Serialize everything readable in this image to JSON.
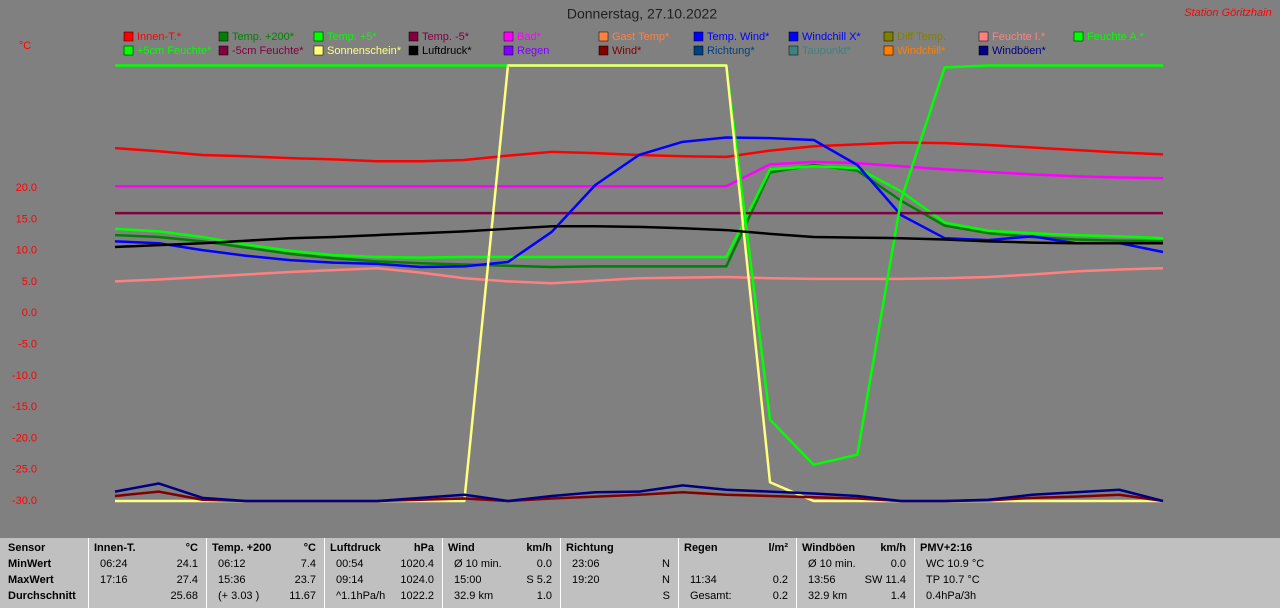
{
  "chart_data": {
    "type": "line",
    "title": "Donnerstag, 27.10.2022",
    "subtitle": "Station Göritzhain",
    "y_label": "°C",
    "x": [
      0,
      1,
      2,
      3,
      4,
      5,
      6,
      7,
      8,
      9,
      10,
      11,
      12,
      13,
      14,
      15,
      16,
      17,
      18,
      19,
      20,
      21,
      22,
      23,
      24
    ],
    "xlim": [
      0,
      24
    ],
    "ylim": [
      -30,
      40
    ],
    "yticks": [
      {
        "value": 20,
        "label": "20.0"
      },
      {
        "value": 15,
        "label": "15.0"
      },
      {
        "value": 10,
        "label": "10.0"
      },
      {
        "value": 5,
        "label": "5.0"
      },
      {
        "value": 0,
        "label": "0.0"
      },
      {
        "value": -5,
        "label": "-5.0"
      },
      {
        "value": -10,
        "label": "-10.0"
      },
      {
        "value": -15,
        "label": "-15.0"
      },
      {
        "value": -20,
        "label": "-20.0"
      },
      {
        "value": -25,
        "label": "-25.0"
      },
      {
        "value": -30,
        "label": "-30.0"
      }
    ],
    "grid": false,
    "series": [
      {
        "name": "Innen-T.*",
        "color": "#ff0000",
        "values": [
          26.4,
          25.9,
          25.3,
          25.1,
          24.8,
          24.6,
          24.3,
          24.3,
          24.5,
          25.2,
          25.8,
          25.6,
          25.3,
          25.1,
          25.0,
          26.0,
          26.7,
          27.0,
          27.3,
          27.2,
          26.9,
          26.5,
          26.1,
          25.7,
          25.4
        ]
      },
      {
        "name": "Temp. +200*",
        "color": "#008000",
        "values": [
          12.5,
          12.2,
          11.5,
          10.5,
          9.5,
          8.8,
          8.3,
          8.0,
          7.8,
          7.6,
          7.4,
          7.5,
          7.5,
          7.5,
          7.5,
          22.5,
          23.7,
          22.8,
          18.0,
          14.0,
          12.8,
          12.2,
          11.8,
          11.6,
          11.5
        ]
      },
      {
        "name": "Temp. +5*",
        "color": "#00ff00",
        "values": [
          13.5,
          13.1,
          12.2,
          11.0,
          10.0,
          9.3,
          9.0,
          8.9,
          9.0,
          9.0,
          9.0,
          9.0,
          9.0,
          9.0,
          9.0,
          23.0,
          23.5,
          23.2,
          19.5,
          14.5,
          13.2,
          12.8,
          12.5,
          12.3,
          12.0
        ]
      },
      {
        "name": "Temp. -5*",
        "color": "#800040",
        "values": [
          16.0,
          16.0,
          16.0,
          16.0,
          16.0,
          16.0,
          16.0,
          16.0,
          16.0,
          16.0,
          16.0,
          16.0,
          16.0,
          16.0,
          16.0,
          16.0,
          16.0,
          16.0,
          16.0,
          16.0,
          16.0,
          16.0,
          16.0,
          16.0,
          16.0
        ]
      },
      {
        "name": "Bad*",
        "color": "#ff00ff",
        "values": [
          20.3,
          20.3,
          20.3,
          20.3,
          20.3,
          20.3,
          20.3,
          20.3,
          20.3,
          20.3,
          20.3,
          20.3,
          20.3,
          20.3,
          20.3,
          23.8,
          24.2,
          24.0,
          23.5,
          23.0,
          22.6,
          22.2,
          21.9,
          21.7,
          21.6
        ]
      },
      {
        "name": "Gast Temp*",
        "color": "#ff8040"
      },
      {
        "name": "Temp. Wind*",
        "color": "#0000ff"
      },
      {
        "name": "Windchill X*",
        "color": "#0000ff",
        "values": [
          11.5,
          11.2,
          10.1,
          9.2,
          8.5,
          8.1,
          7.9,
          7.4,
          7.5,
          8.2,
          13.0,
          20.5,
          25.3,
          27.4,
          28.1,
          28.0,
          27.7,
          23.7,
          15.7,
          12.0,
          11.7,
          12.3,
          11.2,
          11.2,
          9.8
        ]
      },
      {
        "name": "Diff Temp.",
        "color": "#808000"
      },
      {
        "name": "Feuchte I.*",
        "color": "#ff8080",
        "values": [
          5.1,
          5.4,
          5.8,
          6.2,
          6.6,
          6.9,
          7.2,
          6.5,
          5.6,
          5.1,
          4.8,
          5.2,
          5.6,
          5.7,
          5.8,
          5.6,
          5.5,
          5.5,
          5.5,
          5.6,
          5.8,
          6.2,
          6.7,
          7.0,
          7.2
        ]
      },
      {
        "name": "Feuchte A.*",
        "color": "#00ff00",
        "values": [
          39.6,
          39.6,
          39.6,
          39.6,
          39.6,
          39.6,
          39.6,
          39.6,
          39.6,
          39.6,
          39.6,
          39.6,
          39.6,
          39.6,
          39.6,
          -17.0,
          -24.2,
          -22.6,
          18.1,
          39.3,
          39.6,
          39.6,
          39.6,
          39.6,
          39.6
        ]
      },
      {
        "name": "+5cm Feuchte*",
        "color": "#00ff00"
      },
      {
        "name": "-5cm Feuchte*",
        "color": "#800040"
      },
      {
        "name": "Sonnenschein*",
        "color": "#ffff80",
        "values": [
          -30,
          -30,
          -30,
          -30,
          -30,
          -30,
          -30,
          -30,
          -30,
          39.6,
          39.6,
          39.6,
          39.6,
          39.6,
          39.6,
          -27.0,
          -30,
          -30,
          -30,
          -30,
          -30,
          -30,
          -30,
          -30,
          -30
        ]
      },
      {
        "name": "Luftdruck*",
        "color": "#000000",
        "values": [
          10.6,
          10.9,
          11.2,
          11.6,
          12.0,
          12.2,
          12.5,
          12.8,
          13.1,
          13.5,
          13.9,
          13.9,
          13.8,
          13.6,
          13.3,
          12.7,
          12.2,
          12.1,
          12.0,
          11.8,
          11.5,
          11.3,
          11.2,
          11.2,
          11.2
        ]
      },
      {
        "name": "Regen",
        "color": "#8000ff"
      },
      {
        "name": "Wind*",
        "color": "#800000",
        "values": [
          -29.2,
          -28.5,
          -29.8,
          -30,
          -30,
          -30,
          -30,
          -29.8,
          -29.6,
          -30,
          -29.6,
          -29.3,
          -29.0,
          -28.6,
          -29.0,
          -29.2,
          -29.4,
          -29.6,
          -30,
          -30,
          -29.9,
          -29.5,
          -29.3,
          -29.0,
          -30
        ]
      },
      {
        "name": "Richtung*",
        "color": "#004080"
      },
      {
        "name": "Taupunkt*",
        "color": "#408080"
      },
      {
        "name": "Windchill*",
        "color": "#ff8000"
      },
      {
        "name": "Windböen*",
        "color": "#000080",
        "values": [
          -28.5,
          -27.2,
          -29.5,
          -30,
          -30,
          -30,
          -30,
          -29.5,
          -29.0,
          -30,
          -29.2,
          -28.6,
          -28.5,
          -27.5,
          -28.2,
          -28.5,
          -28.8,
          -29.2,
          -30,
          -30,
          -29.8,
          -29.0,
          -28.6,
          -28.2,
          -30
        ]
      }
    ]
  },
  "stats": {
    "row_labels": [
      "Sensor",
      "MinWert",
      "MaxWert",
      "Durchschnitt"
    ],
    "groups": [
      {
        "name": "Innen-T.",
        "unit": "°C",
        "rows": [
          {
            "left": "06:24",
            "right": "24.1"
          },
          {
            "left": "17:16",
            "right": "27.4"
          },
          {
            "right": "25.68"
          }
        ]
      },
      {
        "name": "Temp. +200",
        "unit": "°C",
        "rows": [
          {
            "left": "06:12",
            "right": "7.4"
          },
          {
            "left": "15:36",
            "right": "23.7"
          },
          {
            "left": "(+ 3.03 )",
            "right": "11.67"
          }
        ]
      },
      {
        "name": "Luftdruck",
        "unit": "hPa",
        "rows": [
          {
            "left": "00:54",
            "right": "1020.4"
          },
          {
            "left": "09:14",
            "right": "1024.0"
          },
          {
            "left": "^1.1hPa/h",
            "right": "1022.2"
          }
        ]
      },
      {
        "name": "Wind",
        "unit": "km/h",
        "rows": [
          {
            "left": "Ø 10 min.",
            "right": "0.0"
          },
          {
            "left": "15:00",
            "right": "S 5.2"
          },
          {
            "left": "32.9 km",
            "right": "1.0"
          }
        ]
      },
      {
        "name": "Richtung",
        "rows": [
          {
            "left": "23:06",
            "right": "N"
          },
          {
            "left": "19:20",
            "right": "N"
          },
          {
            "right": "S"
          }
        ]
      },
      {
        "name": "Regen",
        "unit": "l/m²",
        "rows": [
          {},
          {
            "left": "11:34",
            "right": "0.2"
          },
          {
            "left": "Gesamt:",
            "right": "0.2"
          }
        ]
      },
      {
        "name": "Windböen",
        "unit": "km/h",
        "rows": [
          {
            "left": "Ø 10 min.",
            "right": "0.0"
          },
          {
            "left": "13:56",
            "right": "SW 11.4"
          },
          {
            "left": "32.9 km",
            "right": "1.4"
          }
        ]
      },
      {
        "name": "PMV+2:16",
        "rows": [
          {
            "left": "WC 10.9 °C"
          },
          {
            "left": "TP 10.7 °C"
          },
          {
            "left": "0.4hPa/3h"
          }
        ]
      }
    ]
  }
}
